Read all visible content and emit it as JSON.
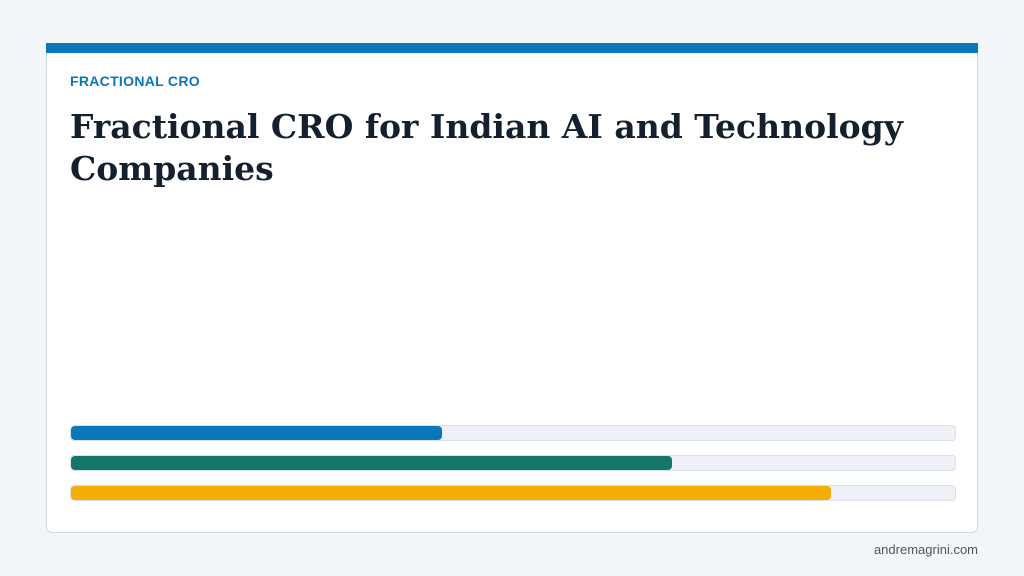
{
  "card": {
    "eyebrow": "FRACTIONAL CRO",
    "title": "Fractional CRO for Indian AI and Technology Companies",
    "bars": [
      {
        "fraction": 0.42,
        "color": "#0a77b8"
      },
      {
        "fraction": 0.68,
        "color": "#14756a"
      },
      {
        "fraction": 0.86,
        "color": "#f4ad05"
      }
    ]
  },
  "footer": {
    "site": "andremagrini.com"
  },
  "colors": {
    "accent": "#0a77b8",
    "title": "#15202f",
    "page_background": "#f3f6f9"
  }
}
